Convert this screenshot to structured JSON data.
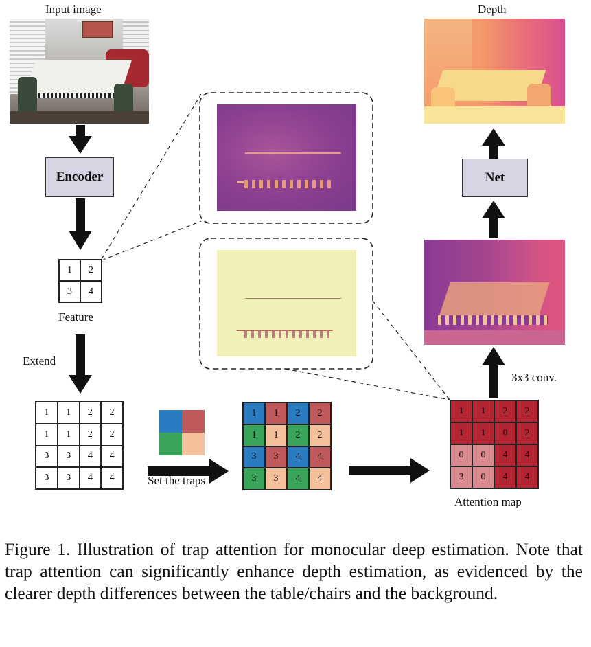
{
  "labels": {
    "input_image": "Input image",
    "depth": "Depth",
    "encoder": "Encoder",
    "net": "Net",
    "feature": "Feature",
    "extend": "Extend",
    "set_traps": "Set the traps",
    "conv": "3x3 conv.",
    "attention_map": "Attention map"
  },
  "feature_grid": [
    "1",
    "2",
    "3",
    "4"
  ],
  "extended_grid": [
    "1",
    "1",
    "2",
    "2",
    "1",
    "1",
    "2",
    "2",
    "3",
    "3",
    "4",
    "4",
    "3",
    "3",
    "4",
    "4"
  ],
  "trap_grid": [
    "1",
    "1",
    "2",
    "2",
    "1",
    "1",
    "2",
    "2",
    "3",
    "3",
    "4",
    "4",
    "3",
    "3",
    "4",
    "4"
  ],
  "trap_colors": [
    "#2a7bbf",
    "#c0595c",
    "#2a7bbf",
    "#c0595c",
    "#3aa55a",
    "#f3c09b",
    "#3aa55a",
    "#f3c09b",
    "#2a7bbf",
    "#c0595c",
    "#2a7bbf",
    "#c0595c",
    "#3aa55a",
    "#f3c09b",
    "#3aa55a",
    "#f3c09b"
  ],
  "legend_colors": [
    "#2a7bbf",
    "#c0595c",
    "#3aa55a",
    "#f3c09b"
  ],
  "attention_grid": [
    "1",
    "1",
    "2",
    "2",
    "1",
    "1",
    "0",
    "2",
    "0",
    "0",
    "4",
    "4",
    "3",
    "0",
    "4",
    "4"
  ],
  "attention_colors": [
    "#b42531",
    "#b42531",
    "#b42531",
    "#b42531",
    "#b42531",
    "#b42531",
    "#b42531",
    "#b42531",
    "#d98b8f",
    "#d98b8f",
    "#b42531",
    "#b42531",
    "#d98b8f",
    "#d98b8f",
    "#b42531",
    "#b42531"
  ],
  "caption": "Figure 1.  Illustration of trap attention for monocular deep estimation. Note that trap attention can significantly enhance depth estimation, as evidenced by the clearer depth differences between the table/chairs and the background."
}
